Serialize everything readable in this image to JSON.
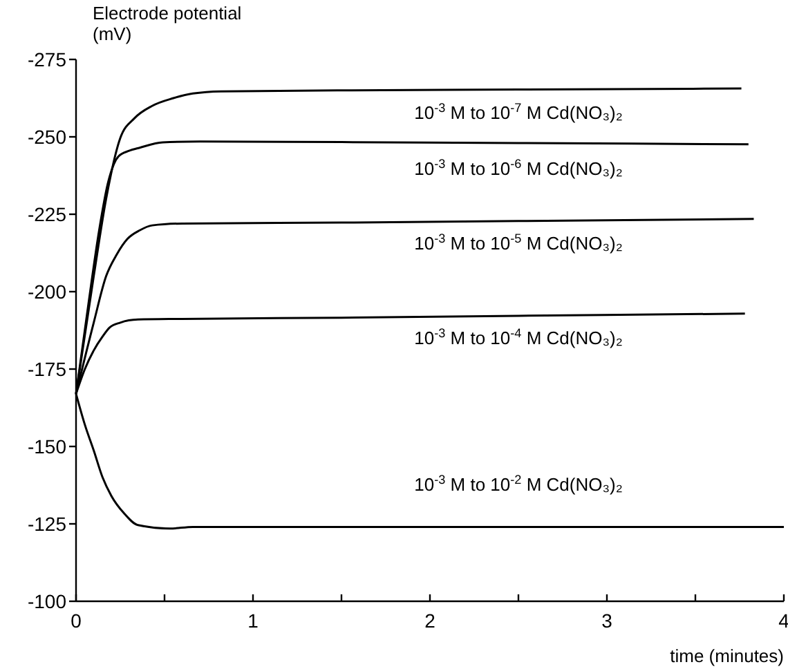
{
  "chart_data": {
    "type": "line",
    "ylabel": "Electrode potential\n(mV)",
    "xlabel": "time (minutes)",
    "xlim": [
      0,
      4
    ],
    "ylim": [
      -100,
      -275
    ],
    "xticks": [
      0,
      {
        "value": 0.5,
        "label": null
      },
      1,
      {
        "value": 1.5,
        "label": null
      },
      2,
      {
        "value": 2.5,
        "label": null
      },
      3,
      {
        "value": 3.5,
        "label": null
      },
      4
    ],
    "yticks": [
      -100,
      -125,
      -150,
      -175,
      -200,
      -225,
      -250,
      -275
    ],
    "grid": false,
    "marker": "none",
    "line_style": "solid",
    "series": [
      {
        "name": "10$^{-3}$ M to 10$^{-7}$ M Cd(NO₃)₂",
        "color": "#000000",
        "x": [
          0,
          0.1,
          0.17,
          0.25,
          0.33,
          0.43,
          0.55,
          0.66,
          0.82,
          1.5,
          2.5,
          3.76
        ],
        "values": [
          -167,
          -205,
          -230,
          -249.6,
          -256,
          -260,
          -262.5,
          -264,
          -264.7,
          -265,
          -265.3,
          -265.6
        ]
      },
      {
        "name": "10$^{-3}$ M to 10$^{-6}$ M Cd(NO₃)₂",
        "color": "#000000",
        "x": [
          0,
          0.07,
          0.13,
          0.18,
          0.24,
          0.3,
          0.36,
          0.49,
          0.7,
          1.5,
          2.5,
          3.8
        ],
        "values": [
          -167,
          -196,
          -219.6,
          -235,
          -243.7,
          -245.5,
          -246.5,
          -248.2,
          -248.5,
          -248.3,
          -248,
          -247.6
        ]
      },
      {
        "name": "10$^{-3}$ M to 10$^{-5}$ M Cd(NO₃)₂",
        "color": "#000000",
        "x": [
          0,
          0.1,
          0.17,
          0.23,
          0.29,
          0.36,
          0.43,
          0.6,
          1.5,
          2.5,
          3.83
        ],
        "values": [
          -167,
          -190,
          -205,
          -212,
          -217,
          -219.8,
          -221.4,
          -222,
          -222.3,
          -222.8,
          -223.5
        ]
      },
      {
        "name": "10$^{-3}$ M to 10$^{-4}$ M Cd(NO₃)₂",
        "color": "#000000",
        "x": [
          0,
          0.05,
          0.1,
          0.15,
          0.19,
          0.25,
          0.35,
          0.6,
          1.5,
          2.5,
          3.78
        ],
        "values": [
          -167,
          -175,
          -181,
          -185.5,
          -188.4,
          -190,
          -191,
          -191.2,
          -191.6,
          -192.2,
          -192.9
        ]
      },
      {
        "name": "10$^{-3}$ M to 10$^{-2}$ M Cd(NO₃)₂",
        "color": "#000000",
        "x": [
          0,
          0.05,
          0.1,
          0.15,
          0.2,
          0.27,
          0.35,
          0.53,
          0.66,
          1.5,
          2.5,
          4
        ],
        "values": [
          -167,
          -157,
          -148.7,
          -140,
          -134,
          -128.5,
          -124.6,
          -123.5,
          -124,
          -124,
          -124,
          -124
        ]
      }
    ]
  }
}
